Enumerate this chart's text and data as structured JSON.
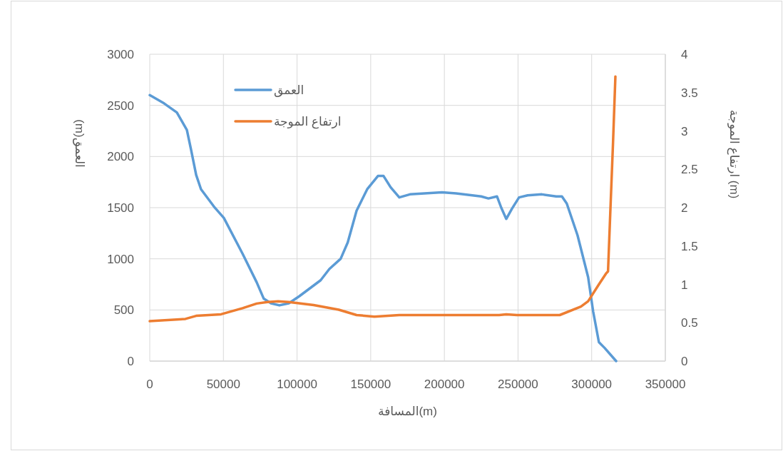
{
  "chart_data": {
    "type": "line",
    "xlabel": "المسافة(m)",
    "ylabel": "العمق(m)",
    "y2label": "ارتفاع الموجة (m)",
    "xlim": [
      0,
      350000
    ],
    "xticks": [
      0,
      50000,
      100000,
      150000,
      200000,
      250000,
      300000,
      350000
    ],
    "ylim": [
      0,
      3000
    ],
    "yticks": [
      0,
      500,
      1000,
      1500,
      2000,
      2500,
      3000
    ],
    "y2lim": [
      0,
      4
    ],
    "y2ticks": [
      0,
      0.5,
      1,
      1.5,
      2,
      2.5,
      3,
      3.5,
      4
    ],
    "grid": true,
    "legend": "top left",
    "marker": "none",
    "line_style": "solid",
    "series": [
      {
        "name": "العمق",
        "color": "#5b9bd5",
        "x": [
          0,
          9700,
          18400,
          25200,
          28000,
          31500,
          34800,
          43600,
          50300,
          63000,
          72600,
          77400,
          82300,
          88000,
          94400,
          101600,
          116000,
          121900,
          129600,
          134400,
          140400,
          147600,
          154900,
          158700,
          163500,
          169400,
          176600,
          198400,
          208000,
          225000,
          229900,
          235700,
          238600,
          242000,
          245900,
          250700,
          256500,
          266200,
          275900,
          279800,
          283100,
          290400,
          297600,
          301000,
          304900,
          308700,
          316600
        ],
        "values": [
          2600,
          2520,
          2430,
          2260,
          2070,
          1820,
          1680,
          1510,
          1400,
          1050,
          770,
          610,
          565,
          545,
          565,
          635,
          790,
          900,
          1000,
          1160,
          1470,
          1680,
          1810,
          1810,
          1700,
          1600,
          1630,
          1650,
          1640,
          1610,
          1590,
          1610,
          1500,
          1390,
          1490,
          1600,
          1620,
          1630,
          1610,
          1610,
          1540,
          1230,
          820,
          485,
          185,
          130,
          0
        ]
      },
      {
        "name": "ارتفاع الموجة",
        "color": "#ed7d31",
        "axis": "y2",
        "x": [
          0,
          24200,
          31500,
          48400,
          63000,
          72600,
          79900,
          87100,
          94400,
          111300,
          128300,
          140400,
          152500,
          169400,
          237200,
          242000,
          249300,
          278300,
          292700,
          297600,
          304900,
          309700,
          311100,
          312600,
          314500,
          316100
        ],
        "values": [
          0.52,
          0.55,
          0.59,
          0.61,
          0.69,
          0.75,
          0.77,
          0.78,
          0.77,
          0.73,
          0.67,
          0.6,
          0.58,
          0.6,
          0.6,
          0.61,
          0.6,
          0.6,
          0.71,
          0.78,
          1.0,
          1.14,
          1.17,
          1.92,
          2.85,
          3.71
        ]
      }
    ]
  }
}
